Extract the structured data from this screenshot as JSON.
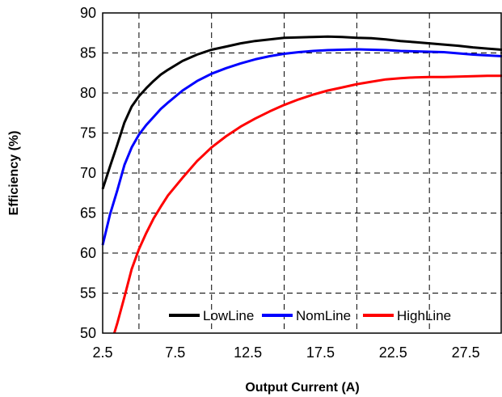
{
  "chart_data": {
    "type": "line",
    "title": "",
    "xlabel": "Output Current (A)",
    "ylabel": "Efficiency (%)",
    "xlim": [
      2.5,
      30
    ],
    "ylim": [
      50,
      90
    ],
    "x_ticks": [
      2.5,
      7.5,
      12.5,
      17.5,
      22.5,
      27.5
    ],
    "x_tick_labels": [
      "2.5",
      "7.5",
      "12.5",
      "17.5",
      "22.5",
      "27.5"
    ],
    "x_gridlines": [
      5,
      10,
      15,
      20,
      25
    ],
    "y_ticks": [
      50,
      55,
      60,
      65,
      70,
      75,
      80,
      85,
      90
    ],
    "y_tick_labels": [
      "50",
      "55",
      "60",
      "65",
      "70",
      "75",
      "80",
      "85",
      "90"
    ],
    "grid": "dashed",
    "legend_position": "bottom-right",
    "series": [
      {
        "name": "LowLine",
        "color": "#000000",
        "points": [
          [
            2.5,
            68.0
          ],
          [
            3.0,
            70.8
          ],
          [
            3.5,
            73.5
          ],
          [
            4.0,
            76.3
          ],
          [
            4.5,
            78.3
          ],
          [
            5.0,
            79.6
          ],
          [
            5.5,
            80.6
          ],
          [
            6.0,
            81.5
          ],
          [
            6.5,
            82.3
          ],
          [
            7.0,
            82.9
          ],
          [
            8.0,
            84.0
          ],
          [
            9.0,
            84.8
          ],
          [
            10.0,
            85.4
          ],
          [
            11.0,
            85.8
          ],
          [
            12.0,
            86.2
          ],
          [
            13.0,
            86.5
          ],
          [
            14.0,
            86.7
          ],
          [
            15.0,
            86.9
          ],
          [
            16.0,
            86.95
          ],
          [
            17.0,
            87.0
          ],
          [
            18.0,
            87.05
          ],
          [
            19.0,
            87.0
          ],
          [
            20.0,
            86.9
          ],
          [
            21.0,
            86.85
          ],
          [
            22.0,
            86.7
          ],
          [
            23.0,
            86.5
          ],
          [
            24.0,
            86.35
          ],
          [
            25.0,
            86.2
          ],
          [
            26.0,
            86.05
          ],
          [
            27.0,
            85.9
          ],
          [
            28.0,
            85.7
          ],
          [
            29.0,
            85.55
          ],
          [
            30.0,
            85.4
          ]
        ]
      },
      {
        "name": "NomLine",
        "color": "#0000ff",
        "points": [
          [
            2.5,
            61.0
          ],
          [
            3.0,
            64.8
          ],
          [
            3.5,
            67.8
          ],
          [
            4.0,
            71.0
          ],
          [
            4.5,
            73.2
          ],
          [
            5.0,
            74.8
          ],
          [
            5.5,
            76.0
          ],
          [
            6.0,
            77.0
          ],
          [
            6.5,
            78.0
          ],
          [
            7.0,
            78.8
          ],
          [
            8.0,
            80.3
          ],
          [
            9.0,
            81.5
          ],
          [
            10.0,
            82.4
          ],
          [
            11.0,
            83.1
          ],
          [
            12.0,
            83.7
          ],
          [
            13.0,
            84.2
          ],
          [
            14.0,
            84.6
          ],
          [
            15.0,
            84.9
          ],
          [
            16.0,
            85.1
          ],
          [
            17.0,
            85.25
          ],
          [
            18.0,
            85.35
          ],
          [
            19.0,
            85.4
          ],
          [
            20.0,
            85.45
          ],
          [
            21.0,
            85.4
          ],
          [
            22.0,
            85.35
          ],
          [
            23.0,
            85.25
          ],
          [
            24.0,
            85.2
          ],
          [
            25.0,
            85.15
          ],
          [
            26.0,
            85.1
          ],
          [
            27.0,
            84.95
          ],
          [
            28.0,
            84.8
          ],
          [
            29.0,
            84.7
          ],
          [
            30.0,
            84.6
          ]
        ]
      },
      {
        "name": "HighLine",
        "color": "#ff0000",
        "points": [
          [
            3.3,
            50.0
          ],
          [
            3.5,
            51.2
          ],
          [
            4.0,
            54.5
          ],
          [
            4.5,
            58.0
          ],
          [
            5.0,
            60.5
          ],
          [
            5.5,
            62.5
          ],
          [
            6.0,
            64.3
          ],
          [
            6.5,
            65.8
          ],
          [
            7.0,
            67.2
          ],
          [
            7.5,
            68.3
          ],
          [
            8.0,
            69.4
          ],
          [
            9.0,
            71.5
          ],
          [
            10.0,
            73.2
          ],
          [
            11.0,
            74.6
          ],
          [
            12.0,
            75.8
          ],
          [
            13.0,
            76.8
          ],
          [
            14.0,
            77.7
          ],
          [
            15.0,
            78.5
          ],
          [
            16.0,
            79.2
          ],
          [
            17.0,
            79.8
          ],
          [
            18.0,
            80.3
          ],
          [
            19.0,
            80.7
          ],
          [
            20.0,
            81.1
          ],
          [
            21.0,
            81.4
          ],
          [
            22.0,
            81.7
          ],
          [
            23.0,
            81.85
          ],
          [
            24.0,
            81.95
          ],
          [
            25.0,
            82.0
          ],
          [
            26.0,
            82.0
          ],
          [
            27.0,
            82.05
          ],
          [
            28.0,
            82.1
          ],
          [
            29.0,
            82.15
          ],
          [
            30.0,
            82.15
          ]
        ]
      }
    ]
  }
}
